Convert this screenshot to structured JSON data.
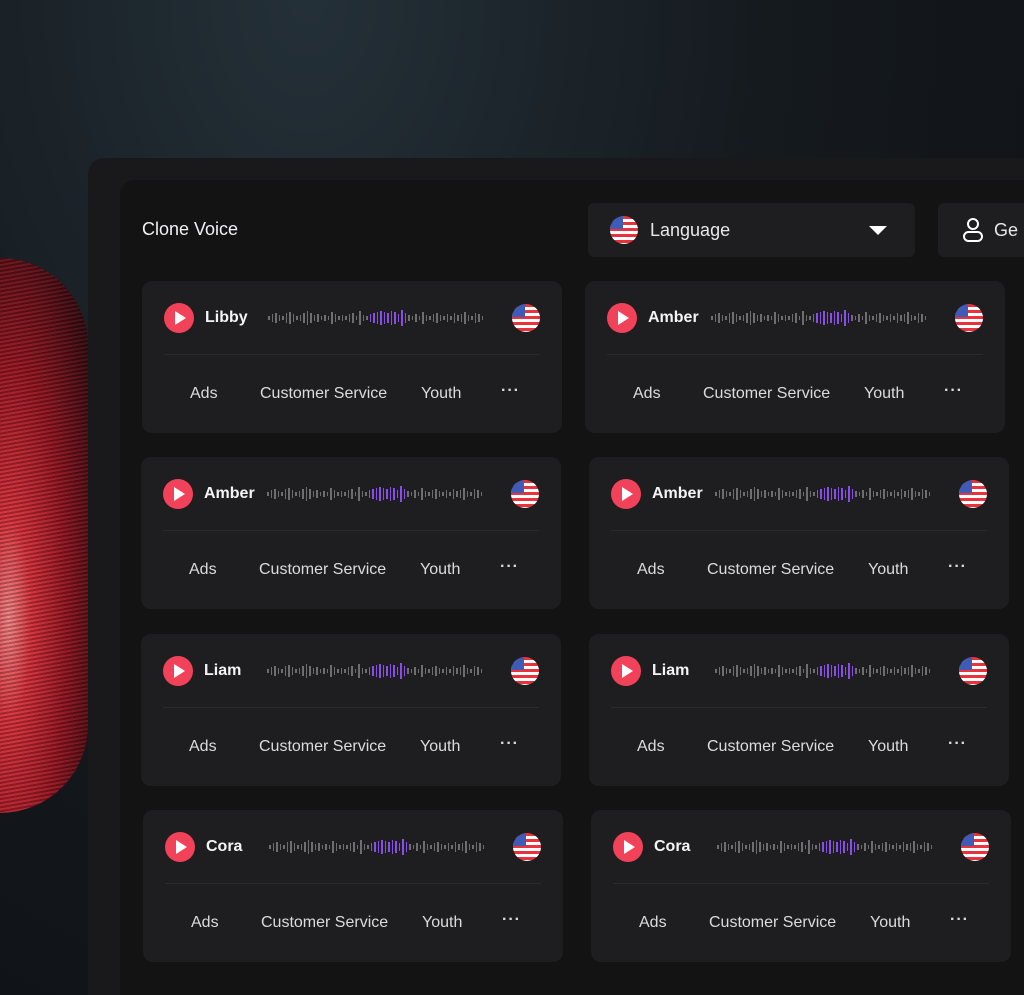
{
  "header": {
    "title": "Clone Voice",
    "language_label": "Language",
    "language_icon": "us-flag-icon",
    "gender_label": "Ge",
    "gender_icon": "person-icon"
  },
  "colors": {
    "accent": "#f2425a",
    "waveform_active": "#8a4ee8"
  },
  "cards": [
    {
      "name": "Libby",
      "tags": [
        "Ads",
        "Customer Service",
        "Youth"
      ],
      "more": "···"
    },
    {
      "name": "Amber",
      "tags": [
        "Ads",
        "Customer Service",
        "Youth"
      ],
      "more": "···"
    },
    {
      "name": "Amber",
      "tags": [
        "Ads",
        "Customer Service",
        "Youth"
      ],
      "more": "···"
    },
    {
      "name": "Amber",
      "tags": [
        "Ads",
        "Customer Service",
        "Youth"
      ],
      "more": "···"
    },
    {
      "name": "Liam",
      "tags": [
        "Ads",
        "Customer Service",
        "Youth"
      ],
      "more": "···"
    },
    {
      "name": "Liam",
      "tags": [
        "Ads",
        "Customer Service",
        "Youth"
      ],
      "more": "···"
    },
    {
      "name": "Cora",
      "tags": [
        "Ads",
        "Customer Service",
        "Youth"
      ],
      "more": "···"
    },
    {
      "name": "Cora",
      "tags": [
        "Ads",
        "Customer Service",
        "Youth"
      ],
      "more": "···"
    }
  ]
}
